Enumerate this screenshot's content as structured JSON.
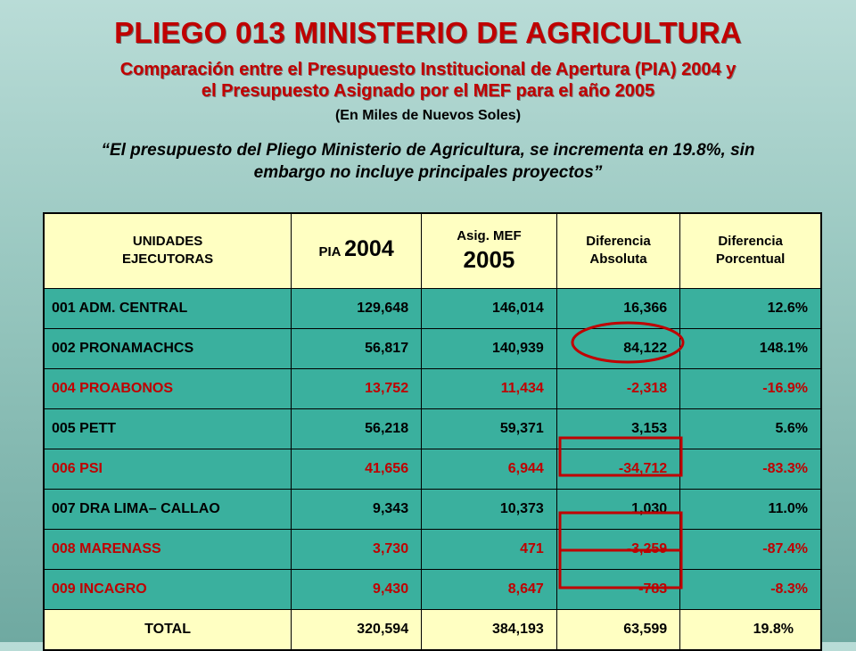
{
  "header": {
    "title": "PLIEGO 013 MINISTERIO DE AGRICULTURA",
    "subtitle_line1": "Comparación entre el Presupuesto Institucional de Apertura (PIA) 2004 y",
    "subtitle_line2": "el Presupuesto Asignado por el MEF para el año 2005",
    "units": "(En Miles de Nuevos Soles)",
    "quote_line1": "“El presupuesto del Pliego Ministerio de Agricultura, se incrementa en 19.8%, sin",
    "quote_line2": "embargo no incluye  principales proyectos”"
  },
  "table": {
    "headers": {
      "units_line1": "UNIDADES",
      "units_line2": "EJECUTORAS",
      "pia_label": "PIA",
      "pia_year": "2004",
      "mef_label": "Asig. MEF",
      "mef_year": "2005",
      "diff_abs_line1": "Diferencia",
      "diff_abs_line2": "Absoluta",
      "diff_pct_line1": "Diferencia",
      "diff_pct_line2": "Porcentual"
    },
    "rows": [
      {
        "name": "001 ADM. CENTRAL",
        "pia": "129,648",
        "mef": "146,014",
        "abs": "16,366",
        "pct": "12.6%"
      },
      {
        "name": "002 PRONAMACHCS",
        "pia": "56,817",
        "mef": "140,939",
        "abs": "84,122",
        "pct": "148.1%"
      },
      {
        "name": "004 PROABONOS",
        "pia": "13,752",
        "mef": "11,434",
        "abs": "-2,318",
        "pct": "-16.9%"
      },
      {
        "name": "005 PETT",
        "pia": "56,218",
        "mef": "59,371",
        "abs": "3,153",
        "pct": "5.6%"
      },
      {
        "name": "006 PSI",
        "pia": "41,656",
        "mef": "6,944",
        "abs": "-34,712",
        "pct": "-83.3%"
      },
      {
        "name": "007 DRA LIMA– CALLAO",
        "pia": "9,343",
        "mef": "10,373",
        "abs": "1,030",
        "pct": "11.0%"
      },
      {
        "name": "008 MARENASS",
        "pia": "3,730",
        "mef": "471",
        "abs": "-3,259",
        "pct": "-87.4%"
      },
      {
        "name": "009 INCAGRO",
        "pia": "9,430",
        "mef": "8,647",
        "abs": "-783",
        "pct": "-8.3%"
      }
    ],
    "total": {
      "name": "TOTAL",
      "pia": "320,594",
      "mef": "384,193",
      "abs": "63,599",
      "pct": "19.8%"
    }
  },
  "colors": {
    "title_red": "#c00000",
    "header_fill": "#ffffc2",
    "row_fill": "#3ab09e",
    "highlight_red": "#c00000"
  }
}
